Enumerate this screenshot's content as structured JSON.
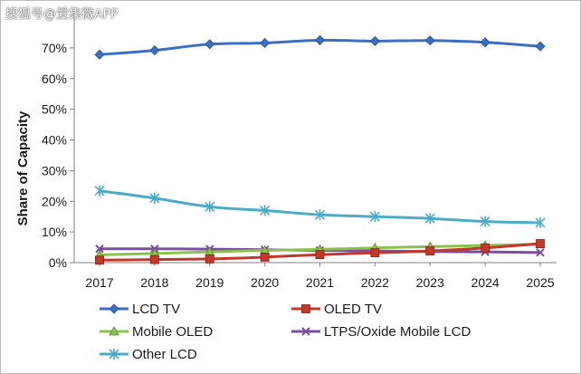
{
  "watermark": "搜狐号@爱集微APP",
  "chart_data": {
    "type": "line",
    "title": "",
    "xlabel": "",
    "ylabel": "Share of Capacity",
    "x": [
      "2017",
      "2018",
      "2019",
      "2020",
      "2021",
      "2022",
      "2023",
      "2024",
      "2025"
    ],
    "ylim": [
      0,
      80
    ],
    "yticks": [
      "0%",
      "10%",
      "20%",
      "30%",
      "40%",
      "50%",
      "60%",
      "70%"
    ],
    "grid": false,
    "legend": "bottom",
    "series": [
      {
        "name": "LCD TV",
        "color": "#3b6fc2",
        "marker": "diamond",
        "values": [
          67.8,
          69.2,
          71.2,
          71.6,
          72.5,
          72.2,
          72.4,
          71.8,
          70.5
        ]
      },
      {
        "name": "OLED TV",
        "color": "#c0392b",
        "marker": "square",
        "values": [
          0.8,
          1.0,
          1.2,
          1.8,
          2.6,
          3.2,
          3.8,
          4.8,
          6.2
        ]
      },
      {
        "name": "Mobile OLED",
        "color": "#8bc34a",
        "marker": "triangle",
        "values": [
          2.5,
          3.0,
          3.5,
          4.0,
          4.3,
          4.8,
          5.2,
          5.6,
          6.0
        ]
      },
      {
        "name": "LTPS/Oxide Mobile LCD",
        "color": "#7b4ea3",
        "marker": "x",
        "values": [
          4.5,
          4.5,
          4.4,
          4.2,
          4.0,
          3.8,
          3.6,
          3.5,
          3.3
        ]
      },
      {
        "name": "Other LCD",
        "color": "#4bacc6",
        "marker": "star",
        "values": [
          23.4,
          21.0,
          18.2,
          17.0,
          15.6,
          15.0,
          14.4,
          13.4,
          13.0
        ]
      }
    ]
  }
}
